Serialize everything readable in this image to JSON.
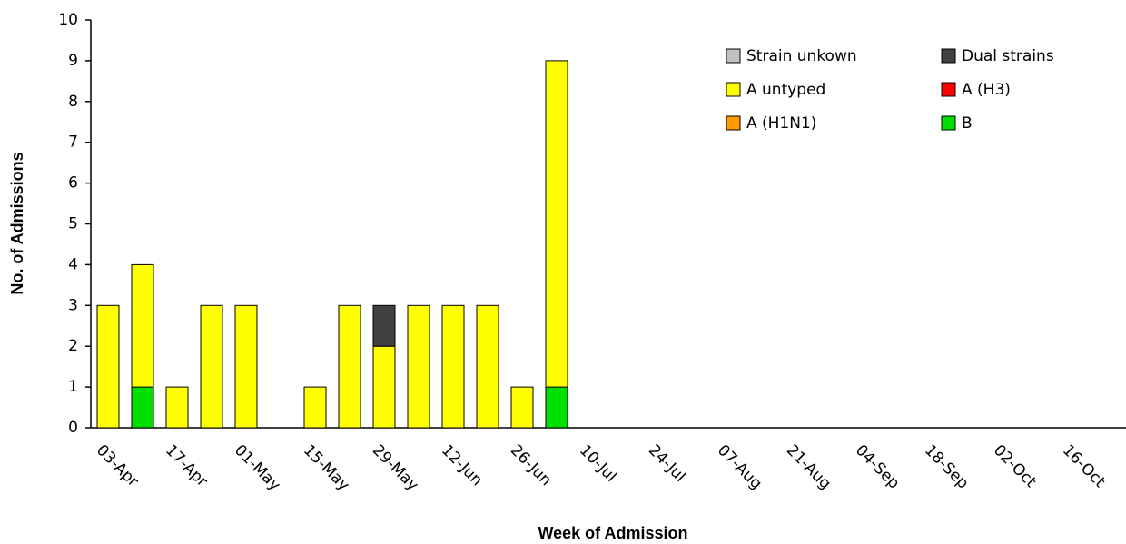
{
  "chart_data": {
    "type": "stacked_bar",
    "x_label": "Week of Admission",
    "y_label": "No. of Admissions",
    "categories": [
      "03-Apr",
      null,
      "17-Apr",
      null,
      "01-May",
      null,
      "15-May",
      null,
      "29-May",
      null,
      "12-Jun",
      null,
      "26-Jun",
      null,
      "10-Jul",
      null,
      "24-Jul",
      null,
      "07-Aug",
      null,
      "21-Aug",
      null,
      "04-Sep",
      null,
      "18-Sep",
      null,
      "02-Oct",
      null,
      "16-Oct",
      null
    ],
    "series": [
      {
        "name": "Strain unkown",
        "color": "#c0c0c0",
        "values": [
          0,
          0,
          0,
          0,
          0,
          0,
          0,
          0,
          0,
          0,
          0,
          0,
          0,
          0,
          0,
          0,
          0,
          0,
          0,
          0,
          0,
          0,
          0,
          0,
          0,
          0,
          0,
          0,
          0,
          0
        ]
      },
      {
        "name": "Dual strains",
        "color": "#404040",
        "values": [
          0,
          0,
          0,
          0,
          0,
          0,
          0,
          0,
          1,
          0,
          0,
          0,
          0,
          0,
          0,
          0,
          0,
          0,
          0,
          0,
          0,
          0,
          0,
          0,
          0,
          0,
          0,
          0,
          0,
          0
        ]
      },
      {
        "name": "A untyped",
        "color": "#ffff00",
        "values": [
          3,
          3,
          1,
          3,
          3,
          0,
          1,
          3,
          2,
          3,
          3,
          3,
          1,
          8,
          0,
          0,
          0,
          0,
          0,
          0,
          0,
          0,
          0,
          0,
          0,
          0,
          0,
          0,
          0,
          0
        ]
      },
      {
        "name": "A (H3)",
        "color": "#ff0000",
        "values": [
          0,
          0,
          0,
          0,
          0,
          0,
          0,
          0,
          0,
          0,
          0,
          0,
          0,
          0,
          0,
          0,
          0,
          0,
          0,
          0,
          0,
          0,
          0,
          0,
          0,
          0,
          0,
          0,
          0,
          0
        ]
      },
      {
        "name": "A (H1N1)",
        "color": "#ff9900",
        "values": [
          0,
          0,
          0,
          0,
          0,
          0,
          0,
          0,
          0,
          0,
          0,
          0,
          0,
          0,
          0,
          0,
          0,
          0,
          0,
          0,
          0,
          0,
          0,
          0,
          0,
          0,
          0,
          0,
          0,
          0
        ]
      },
      {
        "name": "B",
        "color": "#00e000",
        "values": [
          0,
          1,
          0,
          0,
          0,
          0,
          0,
          0,
          0,
          0,
          0,
          0,
          0,
          1,
          0,
          0,
          0,
          0,
          0,
          0,
          0,
          0,
          0,
          0,
          0,
          0,
          0,
          0,
          0,
          0
        ]
      }
    ],
    "ylim": [
      0,
      10
    ],
    "yticks": [
      0,
      1,
      2,
      3,
      4,
      5,
      6,
      7,
      8,
      9,
      10
    ],
    "grid": false
  }
}
